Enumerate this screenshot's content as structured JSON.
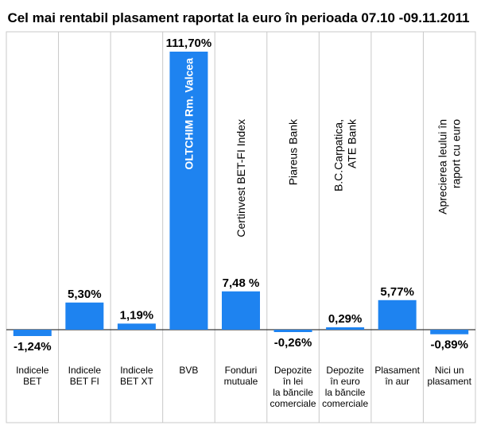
{
  "chart_data": {
    "type": "bar",
    "title": "Cel mai rentabil plasament raportat la euro în perioada 07.10 -09.11.2011",
    "categories": [
      [
        "Indicele",
        "BET"
      ],
      [
        "Indicele",
        "BET FI"
      ],
      [
        "Indicele",
        "BET XT"
      ],
      [
        "BVB"
      ],
      [
        "Fonduri",
        "mutuale"
      ],
      [
        "Depozite",
        "în lei",
        "la băncile",
        "comerciale"
      ],
      [
        "Depozite",
        "în euro",
        "la băncile",
        "comerciale"
      ],
      [
        "Plasament",
        "în aur"
      ],
      [
        "Nici un",
        "plasament"
      ]
    ],
    "values": [
      -1.24,
      5.3,
      1.19,
      111.7,
      7.48,
      -0.26,
      0.29,
      5.77,
      -0.89
    ],
    "value_labels": [
      "-1,24%",
      "5,30%",
      "1,19%",
      "111,70%",
      "7,48 %",
      "-0,26%",
      "0,29%",
      "5,77%",
      "-0,89%"
    ],
    "bar_descriptions": [
      [],
      [],
      [],
      [
        "OLTCHIM Rm. Valcea"
      ],
      [
        "Certinvest BET-FI Index"
      ],
      [
        "Piareus Bank"
      ],
      [
        "B.C.Carpatica,",
        "ATE Bank"
      ],
      [],
      [
        "Aprecierea leului în",
        "raport cu euro"
      ]
    ],
    "bar_color": "#1e83f0",
    "grid": false,
    "legend": "none"
  }
}
